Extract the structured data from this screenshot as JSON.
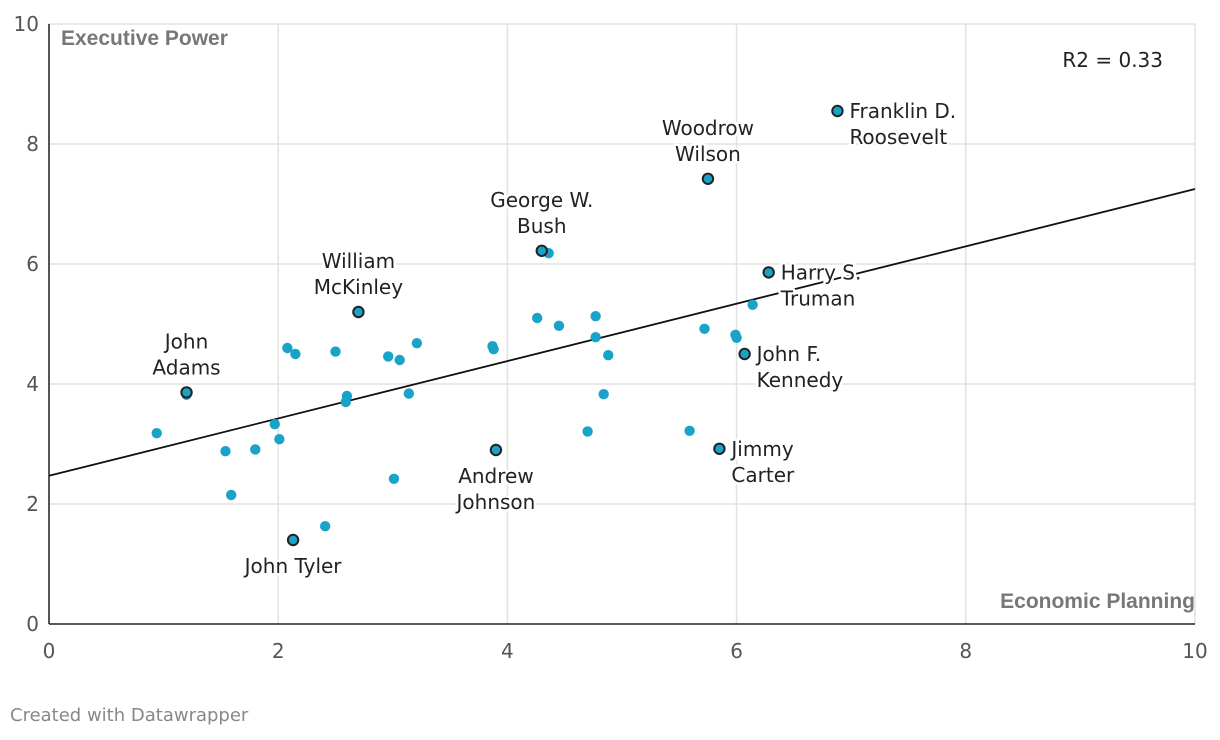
{
  "chart_data": {
    "type": "scatter",
    "xlabel": "Economic Planning",
    "ylabel": "Executive Power",
    "xlim": [
      0,
      10
    ],
    "ylim": [
      0,
      10
    ],
    "x_ticks": [
      "0",
      "2",
      "4",
      "6",
      "8",
      "10"
    ],
    "y_ticks": [
      "0",
      "2",
      "4",
      "6",
      "8",
      "10"
    ],
    "grid": true,
    "annotation": "R2 = 0.33",
    "trendline": {
      "intercept": 2.47,
      "slope": 0.478
    },
    "colors": {
      "point": "#1aa3c9",
      "highlight_point": "#1aa3c9",
      "highlight_stroke": "#222222",
      "trendline": "#111111",
      "grid": "#e2e2e2"
    },
    "labeled_points": [
      {
        "name": "Franklin D. Roosevelt",
        "label_lines": [
          "Franklin D.",
          "Roosevelt"
        ],
        "x": 6.88,
        "y": 8.55,
        "label_side": "right"
      },
      {
        "name": "Woodrow Wilson",
        "label_lines": [
          "Woodrow",
          "Wilson"
        ],
        "x": 5.75,
        "y": 7.42,
        "label_side": "above"
      },
      {
        "name": "George W. Bush",
        "label_lines": [
          "George W.",
          "Bush"
        ],
        "x": 4.3,
        "y": 6.22,
        "label_side": "above"
      },
      {
        "name": "Harry S. Truman",
        "label_lines": [
          "Harry S.",
          "Truman"
        ],
        "x": 6.28,
        "y": 5.86,
        "label_side": "right"
      },
      {
        "name": "William McKinley",
        "label_lines": [
          "William",
          "McKinley"
        ],
        "x": 2.7,
        "y": 5.2,
        "label_side": "above"
      },
      {
        "name": "John F. Kennedy",
        "label_lines": [
          "John F.",
          "Kennedy"
        ],
        "x": 6.07,
        "y": 4.5,
        "label_side": "right"
      },
      {
        "name": "John Adams",
        "label_lines": [
          "John",
          "Adams"
        ],
        "x": 1.2,
        "y": 3.86,
        "label_side": "above"
      },
      {
        "name": "Andrew Johnson",
        "label_lines": [
          "Andrew",
          "Johnson"
        ],
        "x": 3.9,
        "y": 2.9,
        "label_side": "below"
      },
      {
        "name": "Jimmy Carter",
        "label_lines": [
          "Jimmy",
          "Carter"
        ],
        "x": 5.85,
        "y": 2.92,
        "label_side": "right"
      },
      {
        "name": "John Tyler",
        "label_lines": [
          "John Tyler"
        ],
        "x": 2.13,
        "y": 1.4,
        "label_side": "below"
      }
    ],
    "points": [
      {
        "x": 0.94,
        "y": 3.18
      },
      {
        "x": 1.2,
        "y": 3.82
      },
      {
        "x": 1.54,
        "y": 2.88
      },
      {
        "x": 1.59,
        "y": 2.15
      },
      {
        "x": 1.8,
        "y": 2.91
      },
      {
        "x": 1.97,
        "y": 3.33
      },
      {
        "x": 2.01,
        "y": 3.08
      },
      {
        "x": 2.08,
        "y": 4.6
      },
      {
        "x": 2.15,
        "y": 4.5
      },
      {
        "x": 2.41,
        "y": 1.63
      },
      {
        "x": 2.5,
        "y": 4.54
      },
      {
        "x": 2.59,
        "y": 3.7
      },
      {
        "x": 2.6,
        "y": 3.8
      },
      {
        "x": 2.96,
        "y": 4.46
      },
      {
        "x": 3.01,
        "y": 2.42
      },
      {
        "x": 3.06,
        "y": 4.4
      },
      {
        "x": 3.14,
        "y": 3.84
      },
      {
        "x": 3.21,
        "y": 4.68
      },
      {
        "x": 3.87,
        "y": 4.63
      },
      {
        "x": 3.88,
        "y": 4.58
      },
      {
        "x": 4.26,
        "y": 5.1
      },
      {
        "x": 4.36,
        "y": 6.18
      },
      {
        "x": 4.45,
        "y": 4.97
      },
      {
        "x": 4.7,
        "y": 3.21
      },
      {
        "x": 4.77,
        "y": 4.78
      },
      {
        "x": 4.77,
        "y": 5.13
      },
      {
        "x": 4.84,
        "y": 3.83
      },
      {
        "x": 4.88,
        "y": 4.48
      },
      {
        "x": 5.59,
        "y": 3.22
      },
      {
        "x": 5.72,
        "y": 4.92
      },
      {
        "x": 5.99,
        "y": 4.82
      },
      {
        "x": 6.0,
        "y": 4.77
      },
      {
        "x": 6.14,
        "y": 5.32
      }
    ]
  },
  "footer": {
    "credit": "Created with Datawrapper"
  }
}
